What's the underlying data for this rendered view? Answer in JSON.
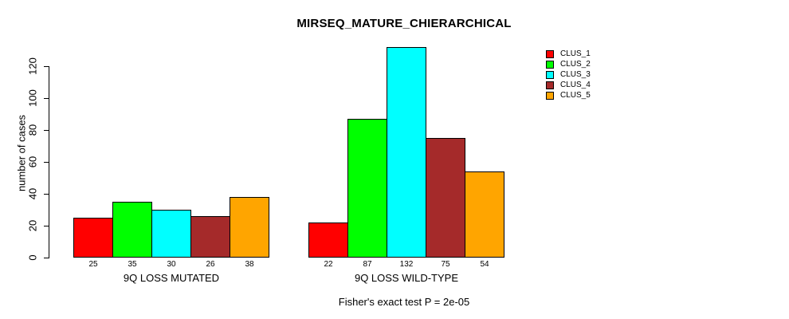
{
  "chart_data": {
    "type": "bar",
    "title": "MIRSEQ_MATURE_CHIERARCHICAL",
    "subtitle": "Fisher's exact test P = 2e-05",
    "ylabel": "number of cases",
    "xlabel": "",
    "ylim": [
      0,
      132
    ],
    "yticks": [
      "0",
      "20",
      "40",
      "60",
      "80",
      "100",
      "120"
    ],
    "grid": false,
    "legend_position": "top-right",
    "categories": [
      "9Q LOSS MUTATED",
      "9Q LOSS WILD-TYPE"
    ],
    "series": [
      {
        "name": "CLUS_1",
        "color": "#FF0000",
        "values": [
          25,
          22
        ]
      },
      {
        "name": "CLUS_2",
        "color": "#00FF00",
        "values": [
          35,
          87
        ]
      },
      {
        "name": "CLUS_3",
        "color": "#00FFFF",
        "values": [
          30,
          132
        ]
      },
      {
        "name": "CLUS_4",
        "color": "#A52A2A",
        "values": [
          26,
          75
        ]
      },
      {
        "name": "CLUS_5",
        "color": "#FFA500",
        "values": [
          38,
          54
        ]
      }
    ],
    "colors": {
      "background": "#FFFFFF",
      "axis": "#000000",
      "text": "#000000"
    }
  }
}
